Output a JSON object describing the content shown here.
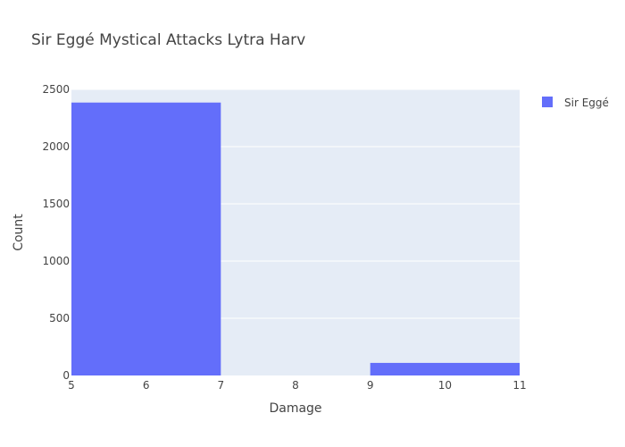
{
  "chart_data": {
    "type": "histogram",
    "title": "Sir Eggé Mystical Attacks Lytra Harv",
    "xlabel": "Damage",
    "ylabel": "Count",
    "xlim": [
      5,
      11
    ],
    "ylim": [
      0,
      2500
    ],
    "x_ticks": [
      5,
      6,
      7,
      8,
      9,
      10,
      11
    ],
    "y_ticks": [
      0,
      500,
      1000,
      1500,
      2000,
      2500
    ],
    "grid": true,
    "legend_position": "top-right",
    "series": [
      {
        "name": "Sir Eggé",
        "color": "#636efa",
        "bins": [
          {
            "x0": 5,
            "x1": 7,
            "value": 2385
          },
          {
            "x0": 7,
            "x1": 9,
            "value": 0
          },
          {
            "x0": 9,
            "x1": 11,
            "value": 110
          }
        ]
      }
    ]
  }
}
